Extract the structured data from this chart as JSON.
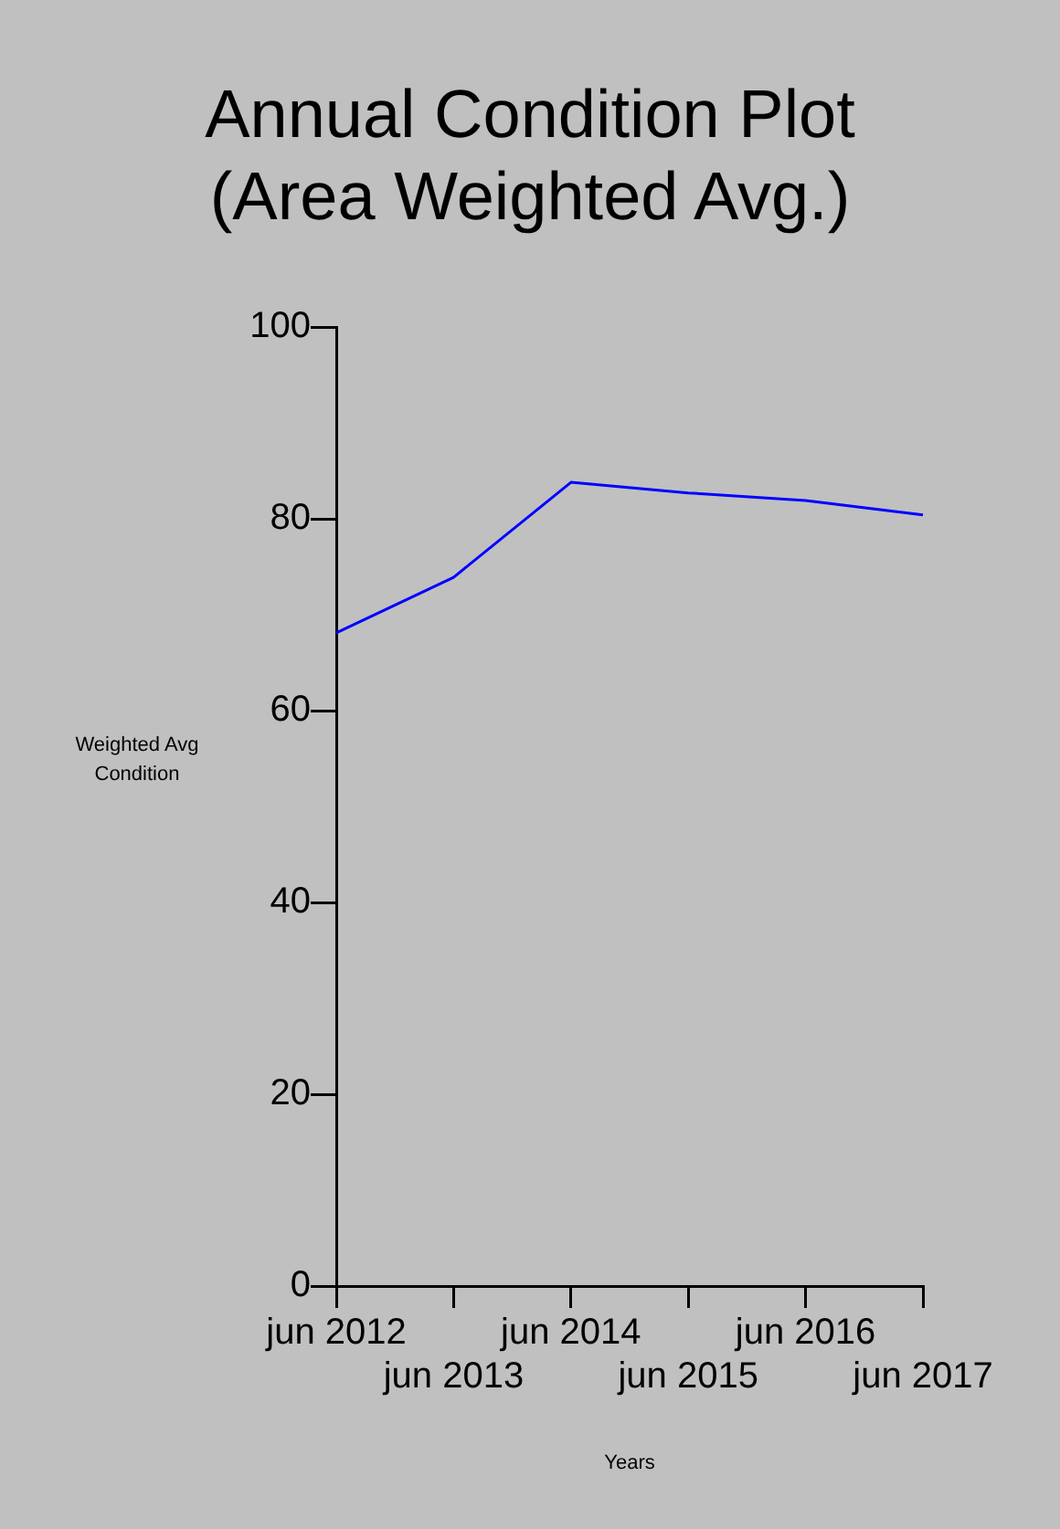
{
  "chart_data": {
    "type": "line",
    "title": "Annual Condition Plot\n(Area Weighted Avg.)",
    "xlabel": "Years",
    "ylabel": "Weighted Avg Condition",
    "categories": [
      "jun 2012",
      "jun 2013",
      "jun 2014",
      "jun 2015",
      "jun 2016",
      "jun 2017"
    ],
    "series": [
      {
        "color": "#0000ff",
        "values": [
          68.1,
          73.9,
          83.8,
          82.7,
          81.9,
          80.4
        ]
      }
    ],
    "ylim": [
      0,
      100
    ],
    "yticks": [
      0,
      20,
      40,
      60,
      80,
      100
    ],
    "grid": false,
    "legend": false,
    "marker": "none",
    "line_style": "solid"
  }
}
